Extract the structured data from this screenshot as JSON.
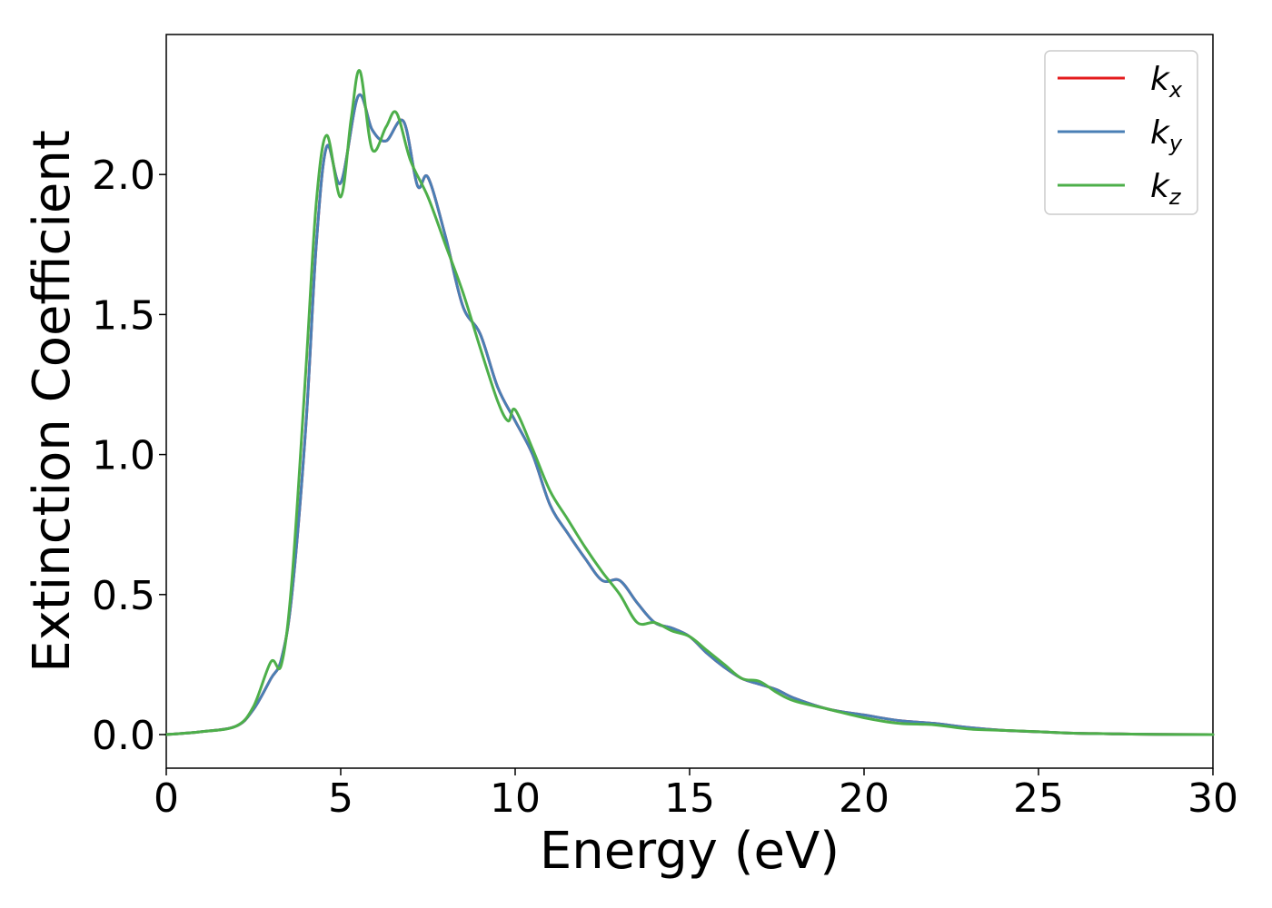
{
  "chart_data": {
    "type": "line",
    "title": "",
    "xlabel": "Energy (eV)",
    "ylabel": "Extinction Coefficient",
    "xlim": [
      0,
      30
    ],
    "ylim": [
      -0.12,
      2.5
    ],
    "xticks": [
      0,
      5,
      10,
      15,
      20,
      25,
      30
    ],
    "xtick_labels": [
      "0",
      "5",
      "10",
      "15",
      "20",
      "25",
      "30"
    ],
    "yticks": [
      0.0,
      0.5,
      1.0,
      1.5,
      2.0
    ],
    "ytick_labels": [
      "0.0",
      "0.5",
      "1.0",
      "1.5",
      "2.0"
    ],
    "grid": false,
    "legend_position": "top-right",
    "series": [
      {
        "name": "k",
        "name_sub": "x",
        "color": "#e41a1c",
        "x": [
          0,
          1,
          2,
          2.5,
          3,
          3.3,
          3.6,
          4,
          4.3,
          4.6,
          5,
          5.5,
          5.9,
          6.3,
          6.8,
          7.2,
          7.5,
          8,
          8.5,
          9,
          9.5,
          10,
          10.5,
          11,
          11.5,
          12,
          12.5,
          13,
          13.5,
          14,
          14.5,
          15,
          15.5,
          16,
          16.5,
          17,
          17.5,
          18,
          19,
          20,
          21,
          22,
          23,
          24,
          25,
          26,
          27,
          28,
          30
        ],
        "y": [
          0.0,
          0.01,
          0.03,
          0.09,
          0.2,
          0.27,
          0.5,
          1.1,
          1.75,
          2.1,
          1.97,
          2.28,
          2.16,
          2.12,
          2.19,
          1.96,
          1.99,
          1.78,
          1.53,
          1.43,
          1.24,
          1.12,
          1.0,
          0.82,
          0.72,
          0.63,
          0.55,
          0.55,
          0.47,
          0.4,
          0.38,
          0.35,
          0.29,
          0.24,
          0.2,
          0.18,
          0.16,
          0.13,
          0.09,
          0.07,
          0.05,
          0.04,
          0.025,
          0.015,
          0.01,
          0.005,
          0.003,
          0.001,
          0.0
        ]
      },
      {
        "name": "k",
        "name_sub": "y",
        "color": "#4a7fb5",
        "x": [
          0,
          1,
          2,
          2.5,
          3,
          3.3,
          3.6,
          4,
          4.3,
          4.6,
          5,
          5.5,
          5.9,
          6.3,
          6.8,
          7.2,
          7.5,
          8,
          8.5,
          9,
          9.5,
          10,
          10.5,
          11,
          11.5,
          12,
          12.5,
          13,
          13.5,
          14,
          14.5,
          15,
          15.5,
          16,
          16.5,
          17,
          17.5,
          18,
          19,
          20,
          21,
          22,
          23,
          24,
          25,
          26,
          27,
          28,
          30
        ],
        "y": [
          0.0,
          0.01,
          0.03,
          0.09,
          0.2,
          0.27,
          0.5,
          1.1,
          1.75,
          2.1,
          1.97,
          2.28,
          2.16,
          2.12,
          2.19,
          1.96,
          1.99,
          1.78,
          1.53,
          1.43,
          1.24,
          1.12,
          1.0,
          0.82,
          0.72,
          0.63,
          0.55,
          0.55,
          0.47,
          0.4,
          0.38,
          0.35,
          0.29,
          0.24,
          0.2,
          0.18,
          0.16,
          0.13,
          0.09,
          0.07,
          0.05,
          0.04,
          0.025,
          0.015,
          0.01,
          0.005,
          0.003,
          0.001,
          0.0
        ]
      },
      {
        "name": "k",
        "name_sub": "z",
        "color": "#4daf4a",
        "x": [
          0,
          1,
          2,
          2.5,
          3,
          3.3,
          3.6,
          4,
          4.3,
          4.6,
          5,
          5.3,
          5.55,
          5.9,
          6.3,
          6.6,
          7,
          7.5,
          8,
          8.5,
          9,
          9.5,
          9.8,
          10,
          10.5,
          11,
          11.5,
          12,
          12.5,
          13,
          13.5,
          14,
          14.5,
          15,
          15.5,
          16,
          16.5,
          17,
          17.5,
          18,
          19,
          20,
          21,
          22,
          23,
          24,
          25,
          26,
          27,
          28,
          30
        ],
        "y": [
          0.0,
          0.01,
          0.03,
          0.1,
          0.26,
          0.25,
          0.55,
          1.3,
          1.9,
          2.14,
          1.92,
          2.2,
          2.37,
          2.09,
          2.17,
          2.22,
          2.05,
          1.92,
          1.75,
          1.58,
          1.38,
          1.19,
          1.12,
          1.16,
          1.02,
          0.87,
          0.77,
          0.67,
          0.58,
          0.5,
          0.4,
          0.4,
          0.37,
          0.35,
          0.3,
          0.25,
          0.2,
          0.19,
          0.15,
          0.12,
          0.09,
          0.06,
          0.04,
          0.035,
          0.02,
          0.015,
          0.01,
          0.005,
          0.003,
          0.001,
          0.0
        ]
      }
    ]
  }
}
